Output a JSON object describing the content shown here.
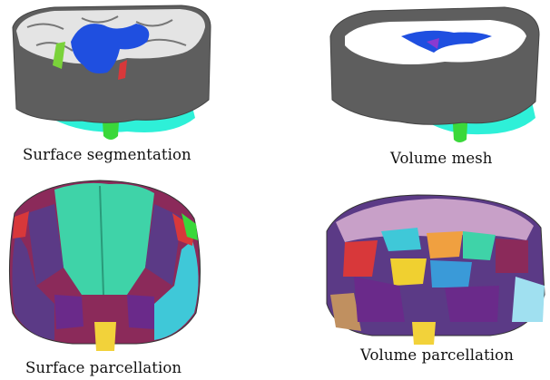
{
  "figure": {
    "captions": {
      "surface_segmentation": "Surface segmentation",
      "volume_mesh": "Volume mesh",
      "surface_parcellation": "Surface parcellation",
      "volume_parcellation": "Volume parcellation"
    },
    "colors": {
      "cortex_gray": "#5e5e5e",
      "white_matter": "#e8e8e8",
      "ventricle_blue": "#1f4fe0",
      "cerebellum_cyan": "#2ef0d8",
      "brainstem_green": "#3ad83a",
      "label_purple": "#5b3a86",
      "label_teal": "#3fd3a8",
      "label_red": "#d8383a",
      "label_yellow": "#f2d23a"
    }
  }
}
